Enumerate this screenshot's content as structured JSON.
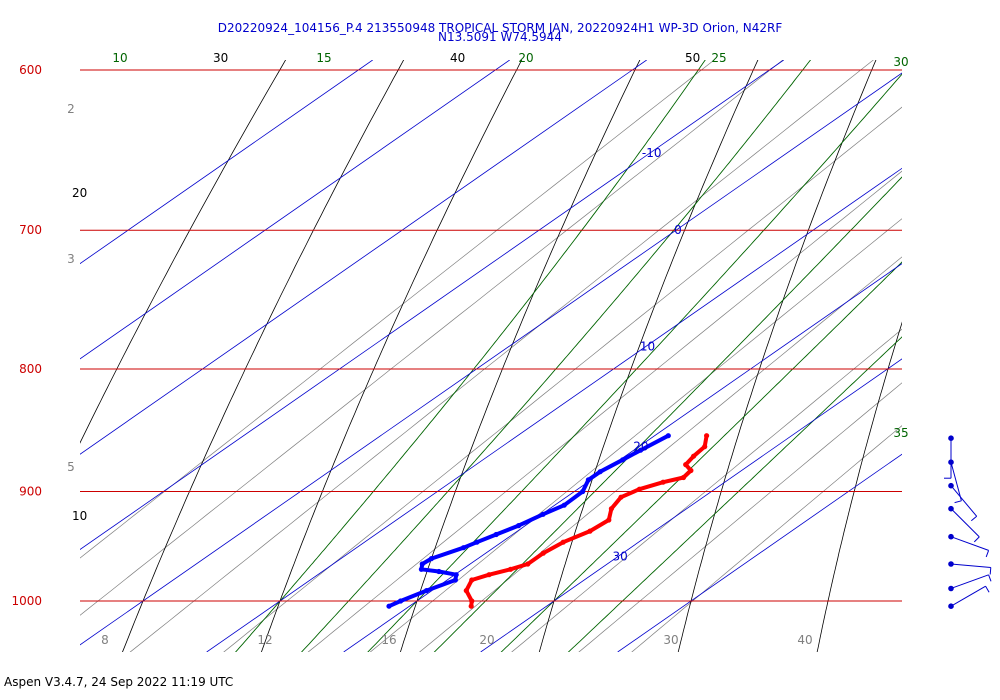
{
  "title_line1": "D20220924_104156_P.4 213550948 TROPICAL STORM JAN, 20220924H1 WP-3D Orion, N42RF",
  "title_line2": "N13.5091 W74.5944",
  "footer": "Aspen V3.4.7, 24 Sep 2022  11:19 UTC",
  "colors": {
    "title": "#0000cc",
    "isobar": "#cc0000",
    "isotherm": "#0000cc",
    "dry_adiabat": "#000000",
    "moist_adiabat": "#006400",
    "mixing_ratio": "#808080",
    "temperature": "#ff0000",
    "dewpoint": "#0000ff",
    "wind_barb": "#0000cc"
  },
  "chart_data": {
    "type": "line",
    "subtype": "skew-T log-P sounding",
    "pressure_levels": [
      600,
      700,
      800,
      900,
      1000
    ],
    "pressure_labels": [
      "600",
      "700",
      "800",
      "900",
      "1000"
    ],
    "isotherms": [
      -10,
      0,
      10,
      20,
      30
    ],
    "isotherm_labels": [
      "-10",
      "0",
      "10",
      "20",
      "30"
    ],
    "dry_adiabats": [
      10,
      20,
      30,
      40,
      50
    ],
    "dry_adiabat_labels": [
      "10",
      "20",
      "30",
      "40",
      "50"
    ],
    "moist_adiabats": [
      10,
      15,
      20,
      25,
      30,
      35
    ],
    "moist_adiabat_labels": [
      "10",
      "15",
      "20",
      "25",
      "30",
      "35"
    ],
    "mixing_ratio_left_labels": [
      "2",
      "3",
      "5"
    ],
    "mixing_ratio_bottom_labels": [
      "8",
      "12",
      "16",
      "20",
      "30",
      "40"
    ],
    "series": [
      {
        "name": "Temperature",
        "points": [
          {
            "p": 1005,
            "t": 24.5
          },
          {
            "p": 1000,
            "t": 24.0
          },
          {
            "p": 990,
            "t": 22.5
          },
          {
            "p": 980,
            "t": 21.8
          },
          {
            "p": 975,
            "t": 22.5
          },
          {
            "p": 970,
            "t": 23.5
          },
          {
            "p": 965,
            "t": 24.2
          },
          {
            "p": 955,
            "t": 24.2
          },
          {
            "p": 945,
            "t": 24.5
          },
          {
            "p": 935,
            "t": 25.3
          },
          {
            "p": 925,
            "t": 25.5
          },
          {
            "p": 915,
            "t": 24.5
          },
          {
            "p": 905,
            "t": 24.0
          },
          {
            "p": 898,
            "t": 24.5
          },
          {
            "p": 892,
            "t": 25.5
          },
          {
            "p": 888,
            "t": 26.5
          },
          {
            "p": 882,
            "t": 26.3
          },
          {
            "p": 877,
            "t": 25.3
          },
          {
            "p": 870,
            "t": 25.0
          },
          {
            "p": 862,
            "t": 24.8
          },
          {
            "p": 853,
            "t": 23.8
          }
        ]
      },
      {
        "name": "Dewpoint",
        "points": [
          {
            "p": 1005,
            "t": 18.5
          },
          {
            "p": 1000,
            "t": 18.8
          },
          {
            "p": 990,
            "t": 19.6
          },
          {
            "p": 980,
            "t": 20.6
          },
          {
            "p": 975,
            "t": 20.1
          },
          {
            "p": 972,
            "t": 18.5
          },
          {
            "p": 970,
            "t": 17.0
          },
          {
            "p": 965,
            "t": 16.5
          },
          {
            "p": 960,
            "t": 16.6
          },
          {
            "p": 950,
            "t": 17.8
          },
          {
            "p": 945,
            "t": 18.2
          },
          {
            "p": 938,
            "t": 18.8
          },
          {
            "p": 930,
            "t": 19.5
          },
          {
            "p": 920,
            "t": 20.1
          },
          {
            "p": 912,
            "t": 20.7
          },
          {
            "p": 900,
            "t": 20.6
          },
          {
            "p": 890,
            "t": 19.8
          },
          {
            "p": 883,
            "t": 19.8
          },
          {
            "p": 873,
            "t": 20.2
          },
          {
            "p": 865,
            "t": 20.5
          },
          {
            "p": 853,
            "t": 21.0
          }
        ]
      }
    ],
    "wind_barbs": [
      {
        "p": 855,
        "dir": 180,
        "speed": 10
      },
      {
        "p": 875,
        "dir": 165,
        "speed": 10
      },
      {
        "p": 895,
        "dir": 140,
        "speed": 10
      },
      {
        "p": 915,
        "dir": 135,
        "speed": 10
      },
      {
        "p": 940,
        "dir": 110,
        "speed": 10
      },
      {
        "p": 965,
        "dir": 95,
        "speed": 10
      },
      {
        "p": 988,
        "dir": 70,
        "speed": 10
      },
      {
        "p": 1005,
        "dir": 60,
        "speed": 10
      }
    ]
  }
}
